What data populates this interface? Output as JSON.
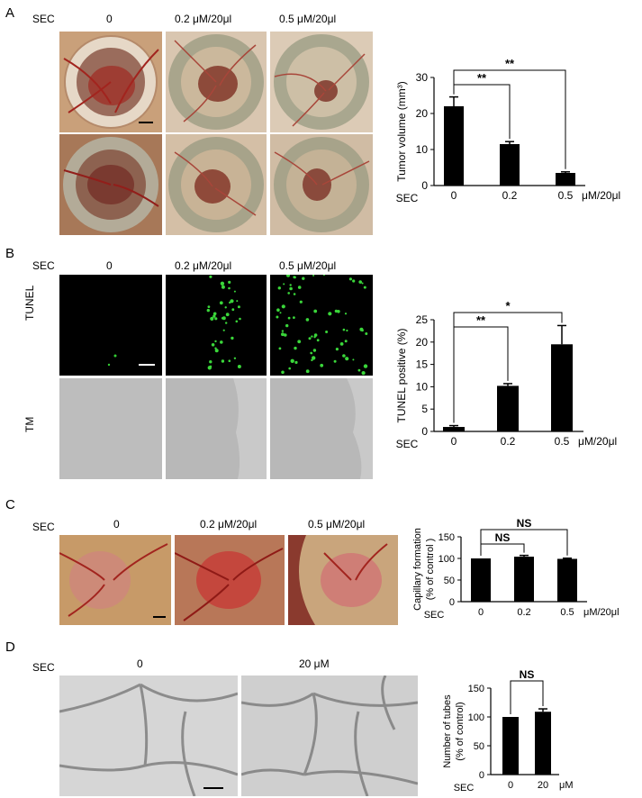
{
  "panels": [
    {
      "id": "A",
      "sec_label": "SEC",
      "conditions": [
        "0",
        "0.2 μM/20μl",
        "0.5 μM/20μl"
      ]
    },
    {
      "id": "B",
      "sec_label": "SEC",
      "conditions": [
        "0",
        "0.2 μM/20μl",
        "0.5 μM/20μl"
      ],
      "row_labels": [
        "TUNEL",
        "TM"
      ]
    },
    {
      "id": "C",
      "sec_label": "SEC",
      "conditions": [
        "0",
        "0.2 μM/20μl",
        "0.5 μM/20μl"
      ]
    },
    {
      "id": "D",
      "sec_label": "SEC",
      "conditions": [
        "0",
        "20 μM"
      ]
    }
  ],
  "chart_data": [
    {
      "panel": "A",
      "type": "bar",
      "categories": [
        "0",
        "0.2",
        "0.5"
      ],
      "values": [
        22,
        11.5,
        3.5
      ],
      "errors": [
        2.6,
        0.7,
        0.3
      ],
      "ylabel": "Tumor volume (mm³)",
      "xprefix": "SEC",
      "unit": "μM/20μl",
      "ylim": [
        0,
        30
      ],
      "yticks": [
        0,
        10,
        20,
        30
      ],
      "significance": [
        {
          "from": 0,
          "to": 1,
          "label": "**"
        },
        {
          "from": 0,
          "to": 2,
          "label": "**"
        }
      ]
    },
    {
      "panel": "B",
      "type": "bar",
      "categories": [
        "0",
        "0.2",
        "0.5"
      ],
      "values": [
        1,
        10.2,
        19.5
      ],
      "errors": [
        0.3,
        0.5,
        4.2
      ],
      "ylabel": "TUNEL positive (%)",
      "xprefix": "SEC",
      "unit": "μM/20μl",
      "ylim": [
        0,
        25
      ],
      "yticks": [
        0,
        5,
        10,
        15,
        20,
        25
      ],
      "significance": [
        {
          "from": 0,
          "to": 1,
          "label": "**"
        },
        {
          "from": 0,
          "to": 2,
          "label": "*"
        }
      ]
    },
    {
      "panel": "C",
      "type": "bar",
      "categories": [
        "0",
        "0.2",
        "0.5"
      ],
      "values": [
        100,
        104,
        99
      ],
      "errors": [
        0,
        3,
        1.5
      ],
      "ylabel": "Capillary formation\n(% of control )",
      "xprefix": "SEC",
      "unit": "μM/20μl",
      "ylim": [
        0,
        150
      ],
      "yticks": [
        0,
        50,
        100,
        150
      ],
      "significance": [
        {
          "from": 0,
          "to": 1,
          "label": "NS"
        },
        {
          "from": 0,
          "to": 2,
          "label": "NS"
        }
      ]
    },
    {
      "panel": "D",
      "type": "bar",
      "categories": [
        "0",
        "20"
      ],
      "values": [
        100,
        109
      ],
      "errors": [
        0,
        5
      ],
      "ylabel": "Number of tubes\n(% of control)",
      "xprefix": "SEC",
      "unit": "μM",
      "ylim": [
        0,
        150
      ],
      "yticks": [
        0,
        50,
        100,
        150
      ],
      "significance": [
        {
          "from": 0,
          "to": 1,
          "label": "NS"
        }
      ]
    }
  ]
}
